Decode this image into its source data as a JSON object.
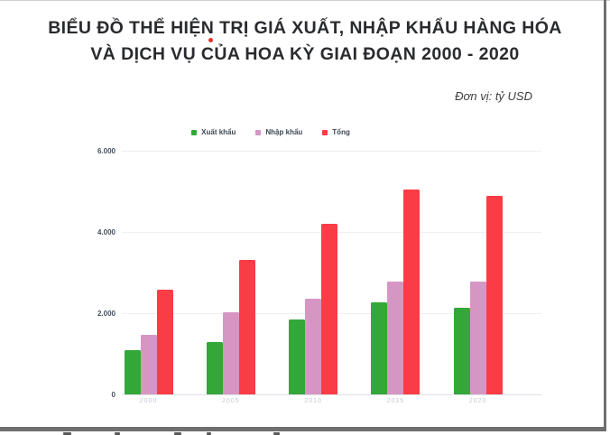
{
  "title": {
    "line1": "BIỂU ĐỒ THỂ HIỆN TRỊ GIÁ XUẤT, NHẬP KHẨU HÀNG HÓA",
    "line2": "VÀ DỊCH VỤ CỦA HOA KỲ GIAI ĐOẠN 2000 - 2020"
  },
  "unit_note": "Đơn vị: tỷ USD",
  "colors": {
    "export_green": "#33a838",
    "import_pink": "#d696c3",
    "total_red": "#fa3c46",
    "annotation_red_dot": "#e5312a"
  },
  "chart_data": {
    "type": "bar",
    "title": "BIỂU ĐỒ THỂ HIỆN TRỊ GIÁ XUẤT, NHẬP KHẨU HÀNG HÓA VÀ DỊCH VỤ CỦA HOA KỲ GIAI ĐOẠN 2000 - 2020",
    "unit": "tỷ USD",
    "categories": [
      "2000",
      "2005",
      "2010",
      "2015",
      "2020"
    ],
    "series": [
      {
        "name": "Xuất khẩu",
        "color": "#33a838",
        "values": [
          1096,
          1286,
          1852,
          2266,
          2123
        ]
      },
      {
        "name": "Nhập khẩu",
        "color": "#d696c3",
        "values": [
          1477,
          2027,
          2348,
          2789,
          2774
        ]
      },
      {
        "name": "Tổng",
        "color": "#fa3c46",
        "values": [
          2573,
          3313,
          4200,
          5055,
          4897
        ]
      }
    ],
    "xlabel": "",
    "ylabel": "tỷ USD",
    "ylim": [
      0,
      6000
    ],
    "yticks": [
      {
        "label": "0",
        "value": 0
      },
      {
        "label": "2.000",
        "value": 2000
      },
      {
        "label": "4.000",
        "value": 4000
      },
      {
        "label": "6.000",
        "value": 6000
      }
    ],
    "grid": true,
    "legend_position": "top-center"
  }
}
